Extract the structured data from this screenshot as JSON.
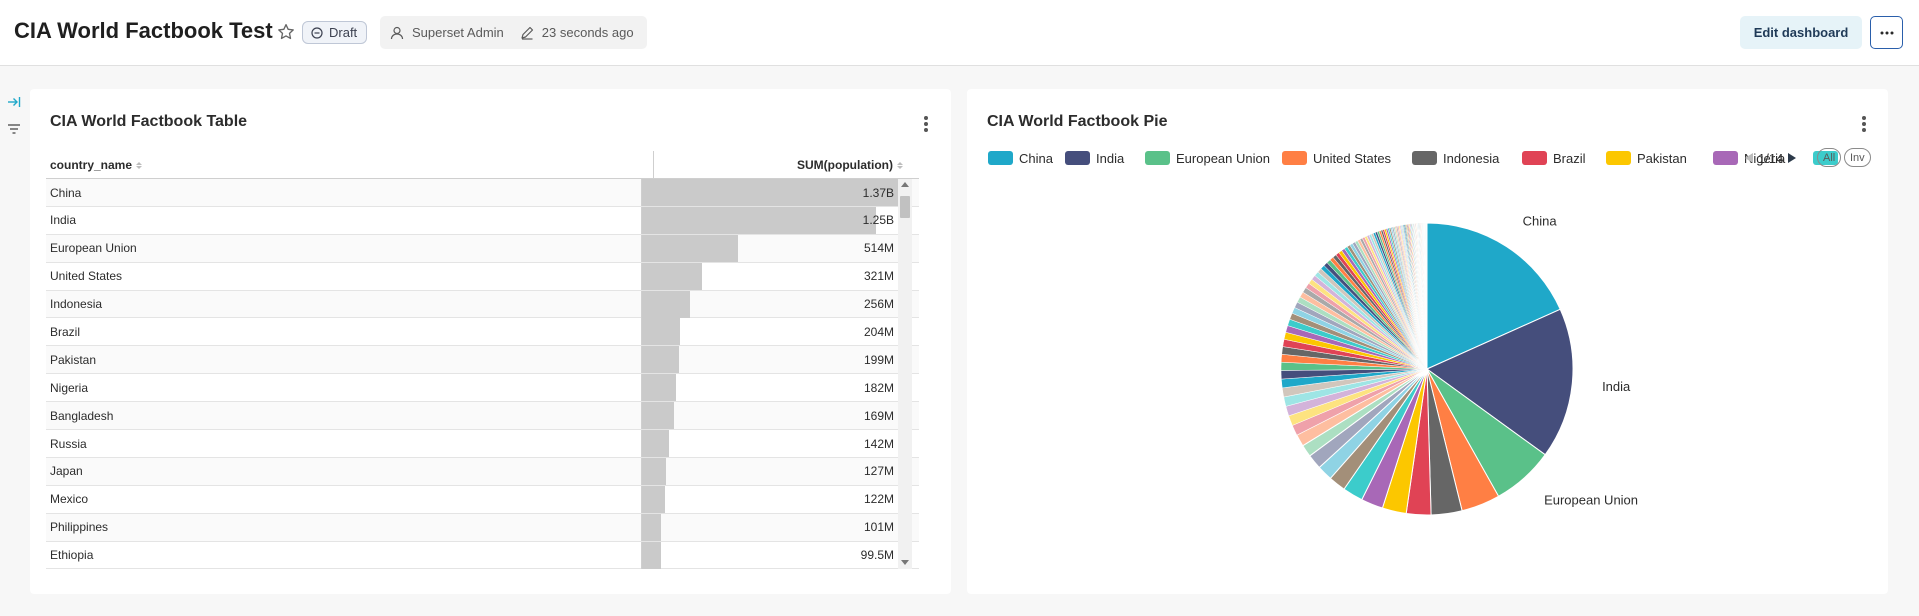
{
  "header": {
    "title": "CIA World Factbook Test",
    "draft_label": "Draft",
    "owner": "Superset Admin",
    "modified": "23 seconds ago",
    "edit_label": "Edit dashboard"
  },
  "table_chart": {
    "title": "CIA World Factbook Table",
    "col_name": "country_name",
    "col_value": "SUM(population)",
    "rows": [
      {
        "name": "China",
        "label": "1.37B",
        "value": 1370
      },
      {
        "name": "India",
        "label": "1.25B",
        "value": 1250
      },
      {
        "name": "European Union",
        "label": "514M",
        "value": 514
      },
      {
        "name": "United States",
        "label": "321M",
        "value": 321
      },
      {
        "name": "Indonesia",
        "label": "256M",
        "value": 256
      },
      {
        "name": "Brazil",
        "label": "204M",
        "value": 204
      },
      {
        "name": "Pakistan",
        "label": "199M",
        "value": 199
      },
      {
        "name": "Nigeria",
        "label": "182M",
        "value": 182
      },
      {
        "name": "Bangladesh",
        "label": "169M",
        "value": 169
      },
      {
        "name": "Russia",
        "label": "142M",
        "value": 142
      },
      {
        "name": "Japan",
        "label": "127M",
        "value": 127
      },
      {
        "name": "Mexico",
        "label": "122M",
        "value": 122
      },
      {
        "name": "Philippines",
        "label": "101M",
        "value": 101
      },
      {
        "name": "Ethiopia",
        "label": "99.5M",
        "value": 99.5
      }
    ]
  },
  "pie_chart": {
    "title": "CIA World Factbook Pie",
    "pager": "1/14",
    "all_label": "All",
    "inv_label": "Inv",
    "legend": [
      {
        "name": "China",
        "color": "#1fa8c9"
      },
      {
        "name": "India",
        "color": "#454e7c"
      },
      {
        "name": "European Union",
        "color": "#5ac189"
      },
      {
        "name": "United States",
        "color": "#ff7f44"
      },
      {
        "name": "Indonesia",
        "color": "#666666"
      },
      {
        "name": "Brazil",
        "color": "#e04355"
      },
      {
        "name": "Pakistan",
        "color": "#fcc700"
      },
      {
        "name": "Nigeria",
        "color": "#a868b7"
      },
      {
        "name": "",
        "color": "#3ccccb"
      }
    ]
  },
  "chart_data": {
    "type": "pie",
    "title": "CIA World Factbook Pie",
    "slices": [
      {
        "label": "China",
        "value": 1370,
        "color": "#1fa8c9"
      },
      {
        "label": "India",
        "value": 1250,
        "color": "#454e7c"
      },
      {
        "label": "European Union",
        "value": 514,
        "color": "#5ac189"
      },
      {
        "label": "United States",
        "value": 321,
        "color": "#ff7f44"
      },
      {
        "label": "Indonesia",
        "value": 256,
        "color": "#666666"
      },
      {
        "label": "Brazil",
        "value": 204,
        "color": "#e04355"
      },
      {
        "label": "Pakistan",
        "value": 199,
        "color": "#fcc700"
      },
      {
        "label": "Nigeria",
        "value": 182,
        "color": "#a868b7"
      },
      {
        "label": "Bangladesh",
        "value": 169,
        "color": "#3ccccb"
      },
      {
        "label": "Russia",
        "value": 142,
        "color": "#a38f79"
      },
      {
        "label": "Japan",
        "value": 127,
        "color": "#8fd3e4"
      },
      {
        "label": "Mexico",
        "value": 122,
        "color": "#a1a6bd"
      },
      {
        "label": "Philippines",
        "value": 101,
        "color": "#acdfc2"
      },
      {
        "label": "Ethiopia",
        "value": 99.5,
        "color": "#febea0"
      }
    ],
    "legend_placement": "top",
    "slice_labels": [
      "China",
      "India",
      "European Union"
    ]
  }
}
